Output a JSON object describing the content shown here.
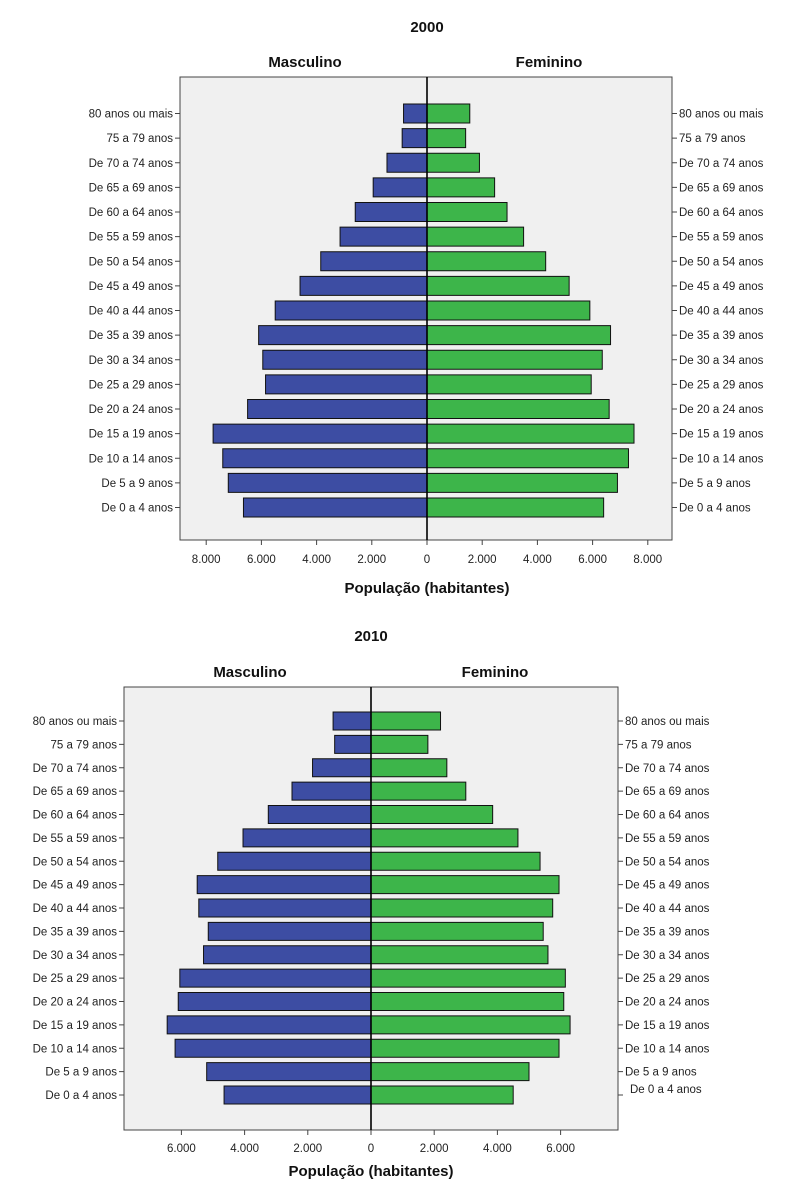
{
  "chart_data": [
    {
      "type": "bar",
      "subtype": "population-pyramid",
      "title": "2000",
      "left_label": "Masculino",
      "right_label": "Feminino",
      "xlabel": "População (habitantes)",
      "xlim": [
        -8000,
        8000
      ],
      "ticks": [
        "8.000",
        "6.000",
        "4.000",
        "2.000",
        "0",
        "2.000",
        "4.000",
        "6.000",
        "8.000"
      ],
      "categories": [
        "80 anos ou mais",
        "75 a 79 anos",
        "De 70 a 74 anos",
        "De 65 a 69 anos",
        "De 60 a 64 anos",
        "De 55 a 59 anos",
        "De 50 a 54 anos",
        "De 45 a 49 anos",
        "De 40 a 44 anos",
        "De 35 a 39 anos",
        "De 30 a 34 anos",
        "De 25 a 29 anos",
        "De 20 a 24 anos",
        "De 15 a 19 anos",
        "De 10 a 14 anos",
        "De 5 a 9 anos",
        "De 0 a 4 anos"
      ],
      "series": [
        {
          "name": "Masculino",
          "color": "#3d4da3",
          "values": [
            850,
            900,
            1450,
            1950,
            2600,
            3150,
            3850,
            4600,
            5500,
            6100,
            5950,
            5850,
            6500,
            7750,
            7400,
            7200,
            6650
          ]
        },
        {
          "name": "Feminino",
          "color": "#3db54a",
          "values": [
            1550,
            1400,
            1900,
            2450,
            2900,
            3500,
            4300,
            5150,
            5900,
            6650,
            6350,
            5950,
            6600,
            7500,
            7300,
            6900,
            6400
          ]
        }
      ]
    },
    {
      "type": "bar",
      "subtype": "population-pyramid",
      "title": "2010",
      "left_label": "Masculino",
      "right_label": "Feminino",
      "xlabel": "População (habitantes)",
      "xlim": [
        -7700,
        7700
      ],
      "ticks": [
        "6.000",
        "4.000",
        "2.000",
        "0",
        "2.000",
        "4.000",
        "6.000"
      ],
      "categories": [
        "80 anos ou mais",
        "75 a 79 anos",
        "De 70 a 74 anos",
        "De 65 a 69 anos",
        "De 60 a 64 anos",
        "De 55 a 59 anos",
        "De 50 a 54 anos",
        "De 45 a 49 anos",
        "De 40 a 44 anos",
        "De 35 a 39 anos",
        "De 30 a 34 anos",
        "De 25 a 29 anos",
        "De 20 a 24 anos",
        "De 15 a 19 anos",
        "De 10 a 14 anos",
        "De 5 a 9 anos",
        "De 0 a 4 anos"
      ],
      "series": [
        {
          "name": "Masculino",
          "color": "#3d4da3",
          "values": [
            1200,
            1150,
            1850,
            2500,
            3250,
            4050,
            4850,
            5500,
            5450,
            5150,
            5300,
            6050,
            6100,
            6450,
            6200,
            5200,
            4650
          ]
        },
        {
          "name": "Feminino",
          "color": "#3db54a",
          "values": [
            2200,
            1800,
            2400,
            3000,
            3850,
            4650,
            5350,
            5950,
            5750,
            5450,
            5600,
            6150,
            6100,
            6300,
            5950,
            5000,
            4500
          ]
        }
      ]
    }
  ]
}
